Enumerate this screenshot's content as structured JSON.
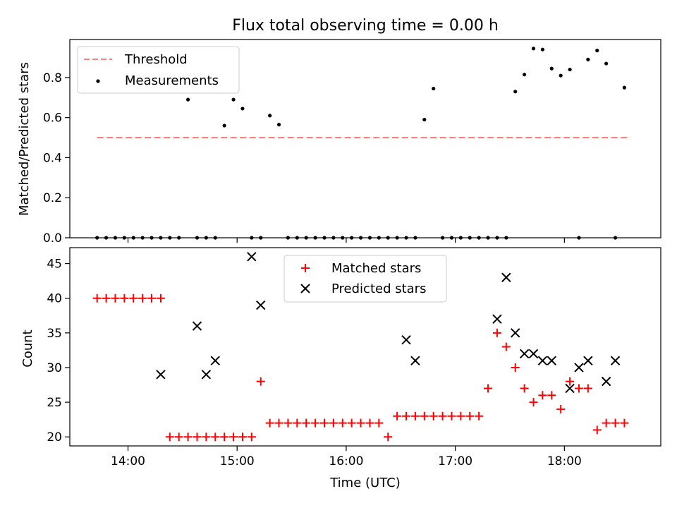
{
  "figure": {
    "title": "Flux total observing time = 0.00 h",
    "xlabel": "Time (UTC)"
  },
  "colors": {
    "threshold": "#ff7f7f",
    "measurement": "#000000",
    "matched": "#ff0000",
    "predicted": "#000000"
  },
  "chart_data": [
    {
      "type": "scatter",
      "ylabel": "Matched/Predicted stars",
      "xlim": [
        "13:28",
        "18:53"
      ],
      "ylim": [
        0,
        0.99
      ],
      "xticks": [
        "14:00",
        "15:00",
        "16:00",
        "17:00",
        "18:00"
      ],
      "yticks": [
        0.0,
        0.2,
        0.4,
        0.6,
        0.8
      ],
      "ytick_labels": [
        "0.0",
        "0.2",
        "0.4",
        "0.6",
        "0.8"
      ],
      "legend": {
        "placement": "top-left",
        "entries": [
          "Threshold",
          "Measurements"
        ]
      },
      "series": [
        {
          "name": "Threshold",
          "kind": "dashed-line",
          "x": [
            "13:43",
            "18:36"
          ],
          "y": [
            0.5,
            0.5
          ]
        },
        {
          "name": "Measurements",
          "kind": "dot",
          "x": [
            "13:43",
            "13:48",
            "13:53",
            "13:58",
            "14:03",
            "14:08",
            "14:13",
            "14:18",
            "14:23",
            "14:28",
            "14:33",
            "14:38",
            "14:43",
            "14:48",
            "14:53",
            "14:58",
            "15:03",
            "15:08",
            "15:13",
            "15:18",
            "15:23",
            "15:28",
            "15:33",
            "15:38",
            "15:43",
            "15:48",
            "15:53",
            "15:58",
            "16:03",
            "16:08",
            "16:13",
            "16:18",
            "16:23",
            "16:28",
            "16:33",
            "16:38",
            "16:43",
            "16:48",
            "16:53",
            "16:58",
            "17:03",
            "17:08",
            "17:13",
            "17:18",
            "17:23",
            "17:28",
            "17:33",
            "17:38",
            "17:43",
            "17:48",
            "17:53",
            "17:58",
            "18:03",
            "18:08",
            "18:13",
            "18:18",
            "18:23",
            "18:28",
            "18:33"
          ],
          "y": [
            0,
            0,
            0,
            0,
            0,
            0,
            0,
            0,
            0,
            0,
            0.69,
            0,
            0,
            0,
            0.56,
            0.69,
            0.645,
            0,
            0,
            0.61,
            0.565,
            0,
            0,
            0,
            0,
            0,
            0,
            0,
            0,
            0,
            0,
            0,
            0,
            0,
            0,
            0,
            0.59,
            0.745,
            0,
            0,
            0,
            0,
            0,
            0,
            0,
            0,
            0.73,
            0.815,
            0.945,
            0.94,
            0.845,
            0.81,
            0.84,
            0,
            0.89,
            0.935,
            0.87,
            0,
            0.75
          ]
        }
      ]
    },
    {
      "type": "scatter",
      "ylabel": "Count",
      "xlim": [
        "13:28",
        "18:53"
      ],
      "ylim": [
        18.7,
        47.3
      ],
      "xticks": [
        "14:00",
        "15:00",
        "16:00",
        "17:00",
        "18:00"
      ],
      "xtick_labels": [
        "14:00",
        "15:00",
        "16:00",
        "17:00",
        "18:00"
      ],
      "yticks": [
        20,
        25,
        30,
        35,
        40,
        45
      ],
      "ytick_labels": [
        "20",
        "25",
        "30",
        "35",
        "40",
        "45"
      ],
      "legend": {
        "placement": "top-center",
        "entries": [
          "Matched stars",
          "Predicted stars"
        ]
      },
      "series": [
        {
          "name": "Matched stars",
          "kind": "plus",
          "x": [
            "13:43",
            "13:48",
            "13:53",
            "13:58",
            "14:03",
            "14:08",
            "14:13",
            "14:18",
            "14:23",
            "14:28",
            "14:33",
            "14:38",
            "14:43",
            "14:48",
            "14:53",
            "14:58",
            "15:03",
            "15:08",
            "15:13",
            "15:18",
            "15:23",
            "15:28",
            "15:33",
            "15:38",
            "15:43",
            "15:48",
            "15:53",
            "15:58",
            "16:03",
            "16:08",
            "16:13",
            "16:18",
            "16:23",
            "16:28",
            "16:33",
            "16:38",
            "16:43",
            "16:48",
            "16:53",
            "16:58",
            "17:03",
            "17:08",
            "17:13",
            "17:18",
            "17:23",
            "17:28",
            "17:33",
            "17:38",
            "17:43",
            "17:48",
            "17:53",
            "17:58",
            "18:03",
            "18:08",
            "18:13",
            "18:18",
            "18:23",
            "18:28",
            "18:33"
          ],
          "y": [
            40,
            40,
            40,
            40,
            40,
            40,
            40,
            40,
            20,
            20,
            20,
            20,
            20,
            20,
            20,
            20,
            20,
            20,
            28,
            22,
            22,
            22,
            22,
            22,
            22,
            22,
            22,
            22,
            22,
            22,
            22,
            22,
            20,
            23,
            23,
            23,
            23,
            23,
            23,
            23,
            23,
            23,
            23,
            27,
            35,
            33,
            30,
            27,
            25,
            26,
            26,
            24,
            28,
            27,
            27,
            21,
            22,
            22,
            22
          ]
        },
        {
          "name": "Predicted stars",
          "kind": "x",
          "x": [
            "14:18",
            "14:38",
            "14:43",
            "14:48",
            "15:08",
            "15:13",
            "16:33",
            "16:38",
            "17:23",
            "17:28",
            "17:33",
            "17:38",
            "17:43",
            "17:48",
            "17:53",
            "18:03",
            "18:08",
            "18:13",
            "18:23",
            "18:28"
          ],
          "y": [
            29,
            36,
            29,
            31,
            46,
            39,
            34,
            31,
            37,
            43,
            35,
            32,
            32,
            31,
            31,
            27,
            30,
            31,
            28,
            31
          ]
        }
      ]
    }
  ]
}
